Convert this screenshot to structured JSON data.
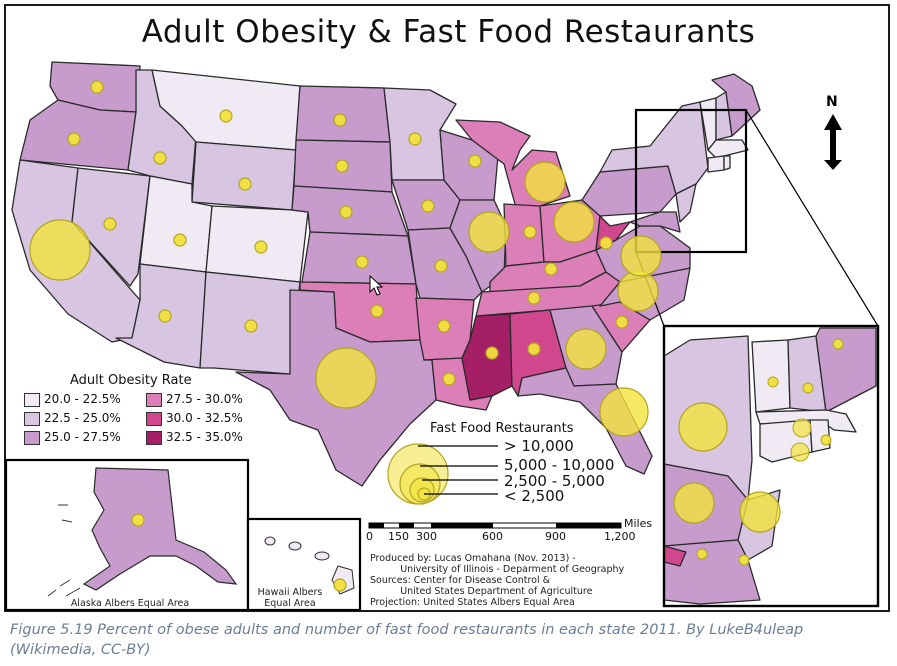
{
  "title": "Adult Obesity & Fast Food Restaurants",
  "colors": {
    "c1": "#efeaf3",
    "c2": "#d8c5e1",
    "c3": "#c79ccd",
    "c4": "#dc7eb8",
    "c5": "#d1478e",
    "c6": "#a41f66",
    "bubble_fill": "#f2e23c",
    "bubble_stroke": "#b3a51f"
  },
  "legend": {
    "title": "Adult Obesity Rate",
    "items": [
      {
        "label": "20.0 - 22.5%",
        "color_key": "c1"
      },
      {
        "label": "22.5 - 25.0%",
        "color_key": "c2"
      },
      {
        "label": "25.0 - 27.5%",
        "color_key": "c3"
      },
      {
        "label": "27.5 - 30.0%",
        "color_key": "c4"
      },
      {
        "label": "30.0 - 32.5%",
        "color_key": "c5"
      },
      {
        "label": "32.5 - 35.0%",
        "color_key": "c6"
      }
    ]
  },
  "fast_food_legend": {
    "title": "Fast Food Restaurants",
    "items": [
      "> 10,000",
      "5,000 - 10,000",
      "2,500 - 5,000",
      "< 2,500"
    ]
  },
  "scale": {
    "ticks": [
      "0",
      "150",
      "300",
      "600",
      "900",
      "1,200"
    ],
    "unit": "Miles"
  },
  "north": "N",
  "credits": [
    "Produced by: Lucas Omahana (Nov. 2013)  -",
    "          University of Illinois - Deparment of Geography",
    "Sources:  Center for Disease Control &",
    "          United States Department of Agriculture",
    "Projection: United States Albers Equal Area"
  ],
  "insets": {
    "alaska": "Alaska Albers Equal Area",
    "hawaii_line1": "Hawaii Albers",
    "hawaii_line2": "Equal Area"
  },
  "caption_line1": "Figure 5.19 Percent of obese adults and number of fast food restaurants in each state 2011. By LukeB4uleap",
  "caption_line2": "(Wikimedia, CC-BY)",
  "states": [
    {
      "name": "WA",
      "class": "c3",
      "bubble": "< 2,500"
    },
    {
      "name": "OR",
      "class": "c3",
      "bubble": "< 2,500"
    },
    {
      "name": "CA",
      "class": "c2",
      "bubble": "> 10,000"
    },
    {
      "name": "NV",
      "class": "c2",
      "bubble": "< 2,500"
    },
    {
      "name": "ID",
      "class": "c2",
      "bubble": "< 2,500"
    },
    {
      "name": "MT",
      "class": "c1",
      "bubble": "< 2,500"
    },
    {
      "name": "WY",
      "class": "c2",
      "bubble": "< 2,500"
    },
    {
      "name": "UT",
      "class": "c1",
      "bubble": "< 2,500"
    },
    {
      "name": "CO",
      "class": "c1",
      "bubble": "< 2,500"
    },
    {
      "name": "AZ",
      "class": "c2",
      "bubble": "< 2,500"
    },
    {
      "name": "NM",
      "class": "c2",
      "bubble": "< 2,500"
    },
    {
      "name": "ND",
      "class": "c3",
      "bubble": "< 2,500"
    },
    {
      "name": "SD",
      "class": "c3",
      "bubble": "< 2,500"
    },
    {
      "name": "NE",
      "class": "c3",
      "bubble": "< 2,500"
    },
    {
      "name": "KS",
      "class": "c3",
      "bubble": "< 2,500"
    },
    {
      "name": "OK",
      "class": "c4",
      "bubble": "< 2,500"
    },
    {
      "name": "TX",
      "class": "c3",
      "bubble": "> 10,000"
    },
    {
      "name": "MN",
      "class": "c2",
      "bubble": "< 2,500"
    },
    {
      "name": "IA",
      "class": "c3",
      "bubble": "< 2,500"
    },
    {
      "name": "MO",
      "class": "c3",
      "bubble": "< 2,500"
    },
    {
      "name": "AR",
      "class": "c4",
      "bubble": "< 2,500"
    },
    {
      "name": "LA",
      "class": "c4",
      "bubble": "< 2,500"
    },
    {
      "name": "WI",
      "class": "c3",
      "bubble": "< 2,500"
    },
    {
      "name": "IL",
      "class": "c3",
      "bubble": "2,500 - 5,000"
    },
    {
      "name": "MI",
      "class": "c4",
      "bubble": "2,500 - 5,000"
    },
    {
      "name": "IN",
      "class": "c4",
      "bubble": "< 2,500"
    },
    {
      "name": "OH",
      "class": "c4",
      "bubble": "2,500 - 5,000"
    },
    {
      "name": "KY",
      "class": "c4",
      "bubble": "< 2,500"
    },
    {
      "name": "TN",
      "class": "c4",
      "bubble": "< 2,500"
    },
    {
      "name": "MS",
      "class": "c6",
      "bubble": "< 2,500"
    },
    {
      "name": "AL",
      "class": "c5",
      "bubble": "< 2,500"
    },
    {
      "name": "GA",
      "class": "c3",
      "bubble": "2,500 - 5,000"
    },
    {
      "name": "FL",
      "class": "c3",
      "bubble": "5,000 - 10,000"
    },
    {
      "name": "SC",
      "class": "c4",
      "bubble": "< 2,500"
    },
    {
      "name": "NC",
      "class": "c3",
      "bubble": "2,500 - 5,000"
    },
    {
      "name": "VA",
      "class": "c3",
      "bubble": "2,500 - 5,000"
    },
    {
      "name": "WV",
      "class": "c5",
      "bubble": "< 2,500"
    },
    {
      "name": "PA",
      "class": "c3",
      "bubble": "2,500 - 5,000"
    },
    {
      "name": "NY",
      "class": "c2",
      "bubble": "5,000 - 10,000"
    },
    {
      "name": "NJ",
      "class": "c2",
      "bubble": "2,500 - 5,000"
    },
    {
      "name": "AK",
      "class": "c3",
      "bubble": "< 2,500"
    },
    {
      "name": "HI",
      "class": "c1",
      "bubble": "< 2,500"
    }
  ]
}
